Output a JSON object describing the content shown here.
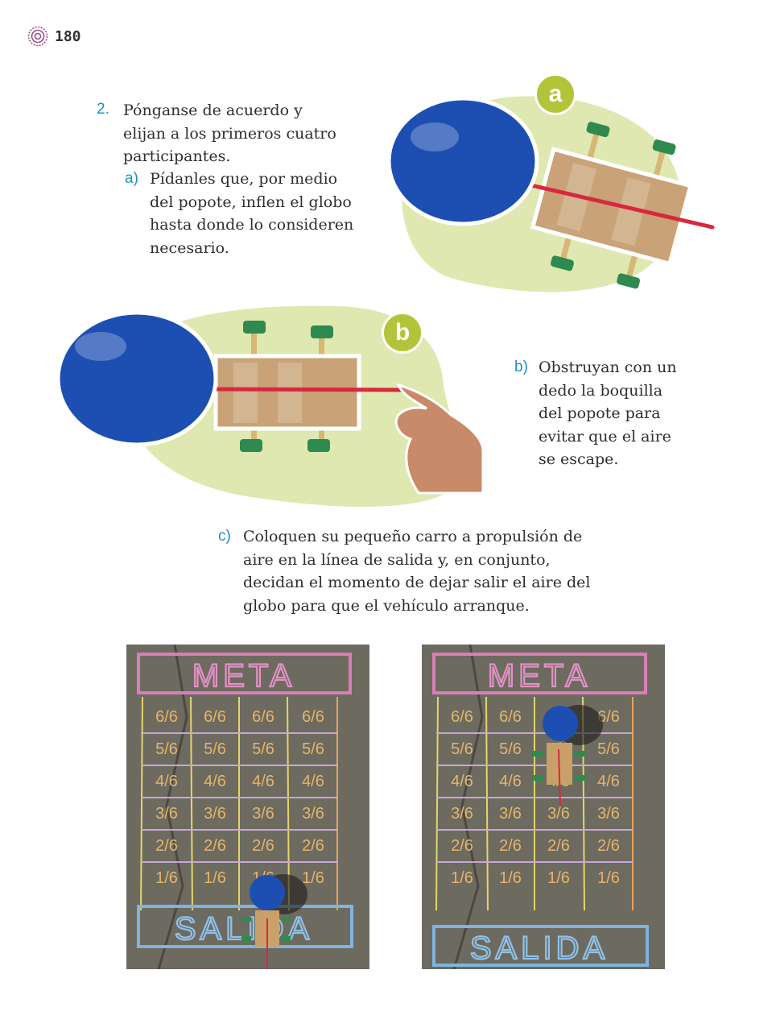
{
  "page": {
    "number": "180"
  },
  "step2": {
    "num": "2.",
    "lines": [
      "Pónganse de acuerdo y",
      "elijan a los primeros cuatro",
      "participantes."
    ]
  },
  "sub_a": {
    "marker": "a)",
    "lines": [
      "Pídanles que, por medio",
      "del popote, inflen el globo",
      "hasta donde lo consideren",
      "necesario."
    ]
  },
  "sub_b": {
    "marker": "b)",
    "lines": [
      "Obstruyan con un",
      "dedo la boquilla",
      "del popote para",
      "evitar que el aire",
      "se escape."
    ]
  },
  "sub_c": {
    "marker": "c)",
    "lines": [
      "Coloquen su pequeño carro a propulsión de",
      "aire en la línea de salida y, en conjunto,",
      "decidan el momento de dejar salir el aire del",
      "globo para que el vehículo arranque."
    ]
  },
  "badges": {
    "a": "a",
    "b": "b"
  },
  "photos": {
    "top_label": "META",
    "bottom_label": "SALIDA",
    "grid_rows": [
      [
        "6/6",
        "6/6",
        "6/6",
        "6/6"
      ],
      [
        "5/6",
        "5/6",
        "5/6",
        "5/6"
      ],
      [
        "4/6",
        "4/6",
        "4/6",
        "4/6"
      ],
      [
        "3/6",
        "3/6",
        "3/6",
        "3/6"
      ],
      [
        "2/6",
        "2/6",
        "2/6",
        "2/6"
      ],
      [
        "1/6",
        "1/6",
        "1/6",
        "1/6"
      ]
    ]
  },
  "colors": {
    "accent_blue": "#1f8fc8",
    "badge_green": "#b3c43b",
    "blob_green": "#dfe8b0",
    "balloon": "#1d4fb3",
    "cardboard": "#c9a277",
    "wheel": "#2e8a4f",
    "straw": "#d8283f"
  }
}
